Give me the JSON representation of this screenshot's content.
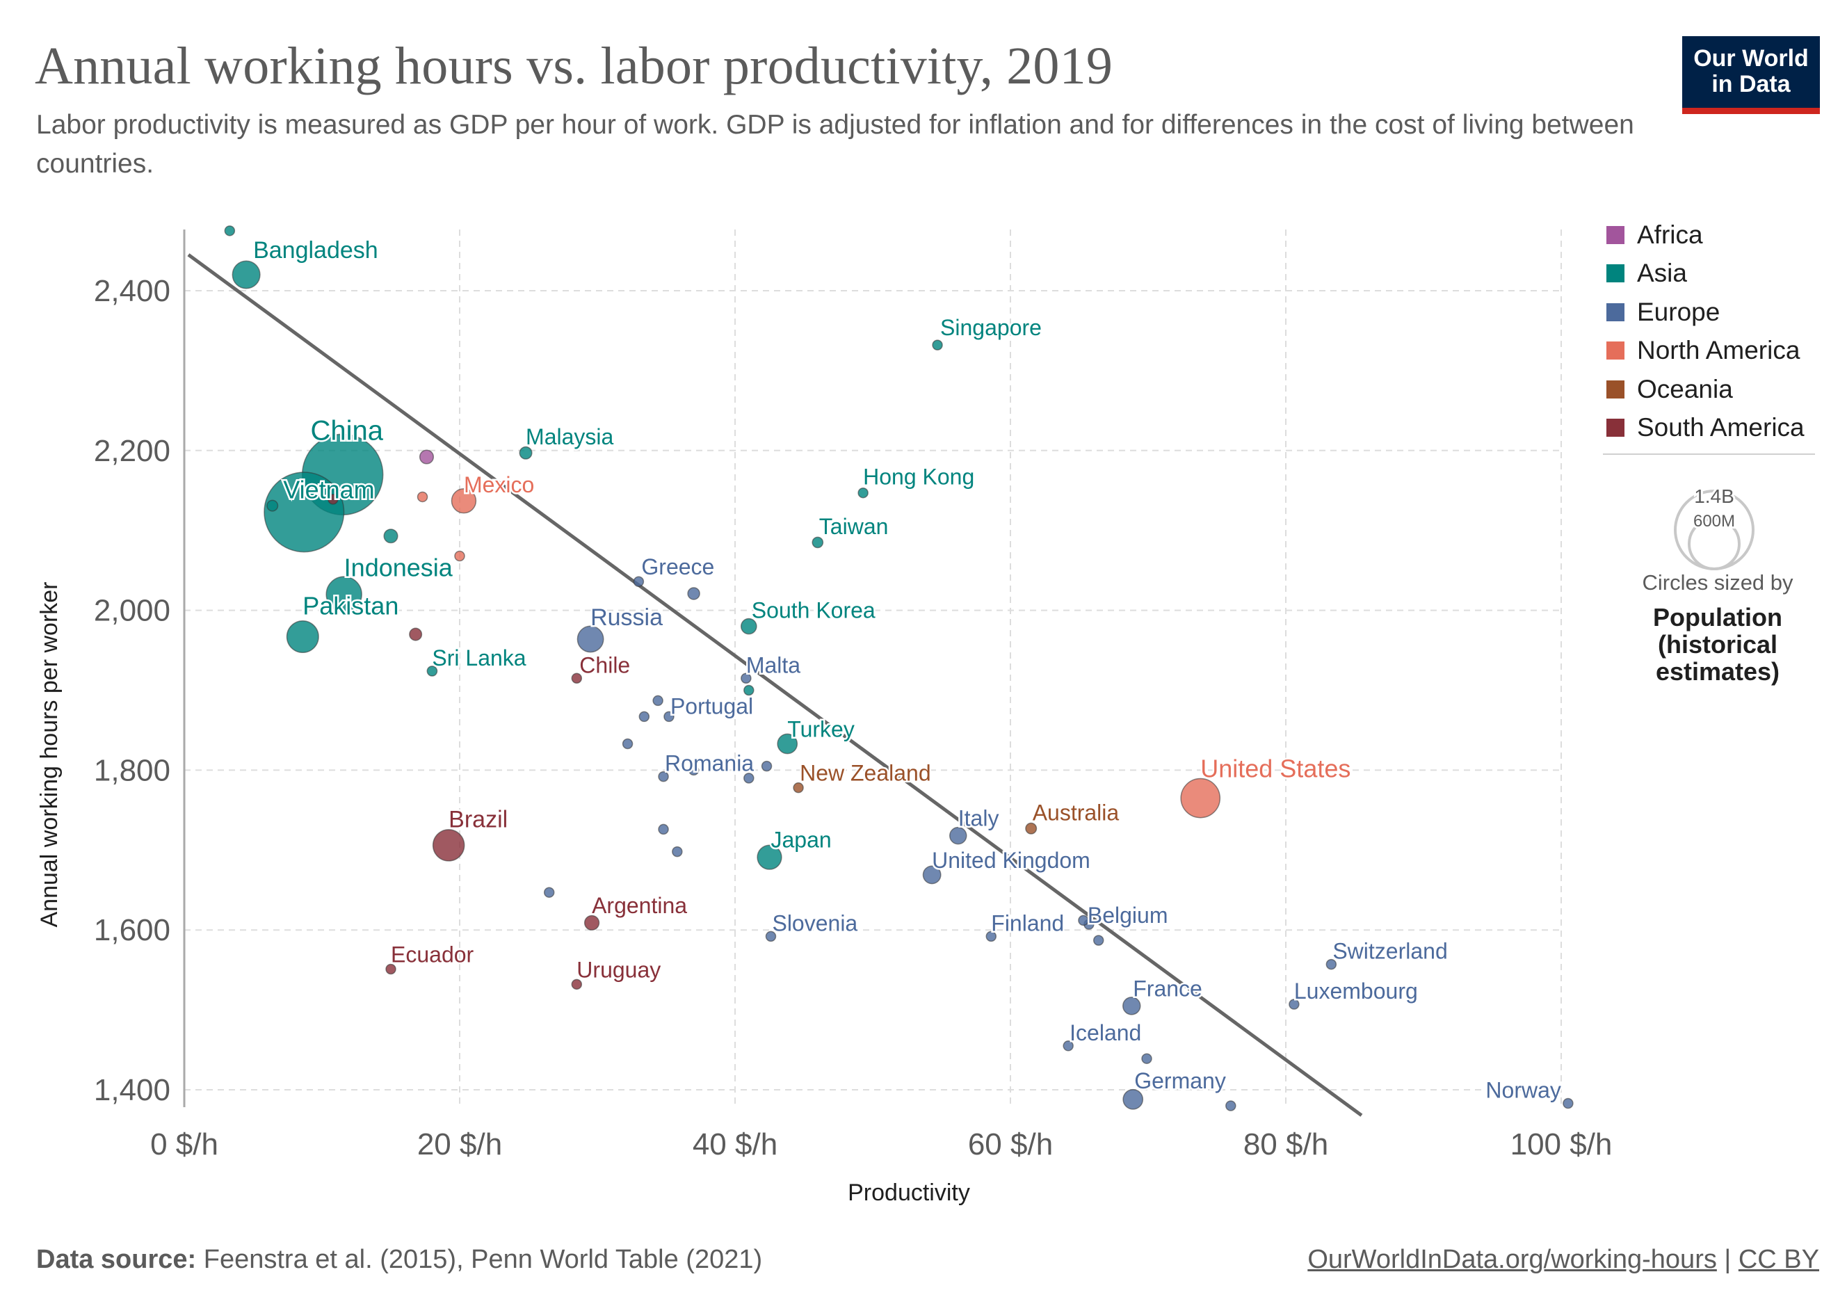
{
  "header": {
    "title": "Annual working hours vs. labor productivity, 2019",
    "subtitle": "Labor productivity is measured as GDP per hour of work. GDP is adjusted for inflation and for differences in the cost of living between countries.",
    "logo_line1": "Our World",
    "logo_line2": "in Data"
  },
  "legend": {
    "items": [
      {
        "label": "Africa",
        "color": "#a2559c"
      },
      {
        "label": "Asia",
        "color": "#00847e"
      },
      {
        "label": "Europe",
        "color": "#4c6a9c"
      },
      {
        "label": "North America",
        "color": "#e56e5a"
      },
      {
        "label": "Oceania",
        "color": "#9a5129"
      },
      {
        "label": "South America",
        "color": "#883039"
      }
    ],
    "size_big": "1.4B",
    "size_small": "600M",
    "size_note": "Circles sized by",
    "size_variable": "Population (historical estimates)"
  },
  "footer": {
    "source_label": "Data source:",
    "source_text": "Feenstra et al. (2015), Penn World Table (2021)",
    "url": "OurWorldInData.org/working-hours",
    "separator": "|",
    "license": "CC BY"
  },
  "chart_data": {
    "type": "scatter",
    "title": "Annual working hours vs. labor productivity, 2019",
    "xlabel": "Productivity",
    "ylabel": "Annual working hours per worker",
    "xlim": [
      0,
      100
    ],
    "ylim": [
      1380,
      2470
    ],
    "x_ticks": [
      0,
      20,
      40,
      60,
      80,
      100
    ],
    "x_tick_labels": [
      "0 $/h",
      "20 $/h",
      "40 $/h",
      "60 $/h",
      "80 $/h",
      "100 $/h"
    ],
    "y_ticks": [
      1400,
      1600,
      1800,
      2000,
      2200,
      2400
    ],
    "y_tick_labels": [
      "1,400",
      "1,600",
      "1,800",
      "2,000",
      "2,200",
      "2,400"
    ],
    "trend_line": {
      "x": [
        0.3,
        85.5
      ],
      "y": [
        2445,
        1368
      ]
    },
    "regions": {
      "Africa": "#a2559c",
      "Asia": "#00847e",
      "Europe": "#4c6a9c",
      "North America": "#e56e5a",
      "Oceania": "#9a5129",
      "South America": "#883039"
    },
    "points": [
      {
        "label": "",
        "region": "Asia",
        "x": 3.3,
        "y": 2475,
        "pop": 10
      },
      {
        "label": "Bangladesh",
        "region": "Asia",
        "x": 4.5,
        "y": 2420,
        "pop": 163
      },
      {
        "label": "Singapore",
        "region": "Asia",
        "x": 54.7,
        "y": 2332,
        "pop": 6
      },
      {
        "label": "China",
        "region": "Asia",
        "x": 11.5,
        "y": 2170,
        "pop": 1400
      },
      {
        "label": "Vietnam",
        "region": "Asia",
        "x": 8.7,
        "y": 2123,
        "pop": 1366
      },
      {
        "label": "",
        "region": "Asia",
        "x": 6.4,
        "y": 2131,
        "pop": 25
      },
      {
        "label": "",
        "region": "South America",
        "x": 10.8,
        "y": 2139,
        "pop": 8
      },
      {
        "label": "",
        "region": "Africa",
        "x": 17.6,
        "y": 2192,
        "pop": 40
      },
      {
        "label": "Malaysia",
        "region": "Asia",
        "x": 24.8,
        "y": 2197,
        "pop": 32
      },
      {
        "label": "Mexico",
        "region": "North America",
        "x": 20.3,
        "y": 2137,
        "pop": 127
      },
      {
        "label": "",
        "region": "North America",
        "x": 17.3,
        "y": 2142,
        "pop": 5
      },
      {
        "label": "Hong Kong",
        "region": "Asia",
        "x": 49.3,
        "y": 2147,
        "pop": 7
      },
      {
        "label": "Taiwan",
        "region": "Asia",
        "x": 46.0,
        "y": 2085,
        "pop": 24
      },
      {
        "label": "",
        "region": "Asia",
        "x": 15.0,
        "y": 2093,
        "pop": 40
      },
      {
        "label": "",
        "region": "North America",
        "x": 20.0,
        "y": 2068,
        "pop": 4
      },
      {
        "label": "Indonesia",
        "region": "Asia",
        "x": 11.6,
        "y": 2020,
        "pop": 270
      },
      {
        "label": "Greece",
        "region": "Europe",
        "x": 33.0,
        "y": 2036,
        "pop": 10
      },
      {
        "label": "",
        "region": "Europe",
        "x": 37.0,
        "y": 2021,
        "pop": 30
      },
      {
        "label": "South Korea",
        "region": "Asia",
        "x": 41.0,
        "y": 1980,
        "pop": 51
      },
      {
        "label": "Pakistan",
        "region": "Asia",
        "x": 8.6,
        "y": 1967,
        "pop": 216
      },
      {
        "label": "",
        "region": "South America",
        "x": 16.8,
        "y": 1970,
        "pop": 32
      },
      {
        "label": "Russia",
        "region": "Europe",
        "x": 29.5,
        "y": 1964,
        "pop": 145
      },
      {
        "label": "Sri Lanka",
        "region": "Asia",
        "x": 18.0,
        "y": 1924,
        "pop": 21
      },
      {
        "label": "Chile",
        "region": "South America",
        "x": 28.5,
        "y": 1915,
        "pop": 19
      },
      {
        "label": "Malta",
        "region": "Europe",
        "x": 40.8,
        "y": 1915,
        "pop": 1
      },
      {
        "label": "",
        "region": "Asia",
        "x": 41.0,
        "y": 1900,
        "pop": 2
      },
      {
        "label": "Portugal",
        "region": "Europe",
        "x": 35.2,
        "y": 1867,
        "pop": 10
      },
      {
        "label": "",
        "region": "Europe",
        "x": 34.4,
        "y": 1887,
        "pop": 2
      },
      {
        "label": "",
        "region": "Europe",
        "x": 33.4,
        "y": 1867,
        "pop": 2
      },
      {
        "label": "Turkey",
        "region": "Asia",
        "x": 43.8,
        "y": 1833,
        "pop": 83
      },
      {
        "label": "",
        "region": "Europe",
        "x": 32.2,
        "y": 1833,
        "pop": 4
      },
      {
        "label": "Romania",
        "region": "Europe",
        "x": 34.8,
        "y": 1792,
        "pop": 19
      },
      {
        "label": "",
        "region": "Europe",
        "x": 37.0,
        "y": 1800,
        "pop": 1
      },
      {
        "label": "",
        "region": "Europe",
        "x": 41.0,
        "y": 1790,
        "pop": 7
      },
      {
        "label": "",
        "region": "Europe",
        "x": 42.3,
        "y": 1805,
        "pop": 1
      },
      {
        "label": "New Zealand",
        "region": "Oceania",
        "x": 44.6,
        "y": 1778,
        "pop": 5
      },
      {
        "label": "United States",
        "region": "North America",
        "x": 73.8,
        "y": 1765,
        "pop": 328
      },
      {
        "label": "Brazil",
        "region": "South America",
        "x": 19.2,
        "y": 1706,
        "pop": 211
      },
      {
        "label": "Australia",
        "region": "Oceania",
        "x": 61.5,
        "y": 1727,
        "pop": 25
      },
      {
        "label": "Italy",
        "region": "Europe",
        "x": 56.2,
        "y": 1718,
        "pop": 60
      },
      {
        "label": "",
        "region": "Europe",
        "x": 34.8,
        "y": 1726,
        "pop": 4
      },
      {
        "label": "",
        "region": "Europe",
        "x": 35.8,
        "y": 1698,
        "pop": 3
      },
      {
        "label": "Japan",
        "region": "Asia",
        "x": 42.5,
        "y": 1691,
        "pop": 126
      },
      {
        "label": "United Kingdom",
        "region": "Europe",
        "x": 54.3,
        "y": 1669,
        "pop": 67
      },
      {
        "label": "",
        "region": "Europe",
        "x": 26.5,
        "y": 1647,
        "pop": 4
      },
      {
        "label": "Argentina",
        "region": "South America",
        "x": 29.6,
        "y": 1609,
        "pop": 45
      },
      {
        "label": "Finland",
        "region": "Europe",
        "x": 58.6,
        "y": 1592,
        "pop": 5
      },
      {
        "label": "Slovenia",
        "region": "Europe",
        "x": 42.6,
        "y": 1592,
        "pop": 2
      },
      {
        "label": "Belgium",
        "region": "Europe",
        "x": 65.7,
        "y": 1607,
        "pop": 11
      },
      {
        "label": "",
        "region": "Europe",
        "x": 65.3,
        "y": 1612,
        "pop": 1
      },
      {
        "label": "",
        "region": "Europe",
        "x": 66.4,
        "y": 1587,
        "pop": 17
      },
      {
        "label": "Ecuador",
        "region": "South America",
        "x": 15.0,
        "y": 1551,
        "pop": 17
      },
      {
        "label": "Uruguay",
        "region": "South America",
        "x": 28.5,
        "y": 1532,
        "pop": 3
      },
      {
        "label": "Switzerland",
        "region": "Europe",
        "x": 83.3,
        "y": 1557,
        "pop": 9
      },
      {
        "label": "Luxembourg",
        "region": "Europe",
        "x": 80.6,
        "y": 1507,
        "pop": 1
      },
      {
        "label": "France",
        "region": "Europe",
        "x": 68.8,
        "y": 1505,
        "pop": 65
      },
      {
        "label": "Iceland",
        "region": "Europe",
        "x": 64.2,
        "y": 1455,
        "pop": 1
      },
      {
        "label": "",
        "region": "Europe",
        "x": 69.9,
        "y": 1439,
        "pop": 6
      },
      {
        "label": "Germany",
        "region": "Europe",
        "x": 68.9,
        "y": 1388,
        "pop": 83
      },
      {
        "label": "",
        "region": "Europe",
        "x": 76.0,
        "y": 1380,
        "pop": 6
      },
      {
        "label": "Norway",
        "region": "Europe",
        "x": 100.5,
        "y": 1383,
        "pop": 5
      }
    ]
  }
}
